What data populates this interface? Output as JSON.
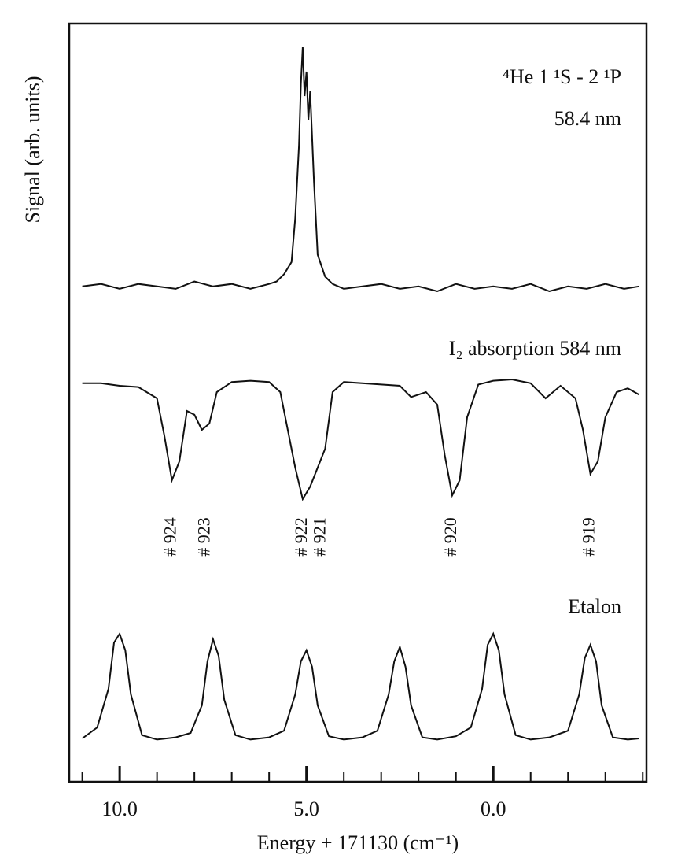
{
  "chart_data": [
    {
      "type": "line",
      "ylabel": "Signal (arb. units)",
      "annotations": [
        "⁴He 1 ¹S - 2 ¹P",
        "58.4 nm"
      ],
      "xlim": [
        11.35,
        -4.1
      ],
      "ylim": [
        0,
        1
      ],
      "x": [
        11,
        10.5,
        10,
        9.5,
        9,
        8.5,
        8,
        7.5,
        7,
        6.5,
        6,
        5.8,
        5.6,
        5.4,
        5.3,
        5.2,
        5.15,
        5.1,
        5.05,
        5.0,
        4.95,
        4.9,
        4.8,
        4.7,
        4.5,
        4.3,
        4,
        3.5,
        3,
        2.5,
        2,
        1.5,
        1,
        0.5,
        0,
        -0.5,
        -1,
        -1.5,
        -2,
        -2.5,
        -3,
        -3.5,
        -3.9
      ],
      "series": [
        {
          "color": "#111111",
          "values": [
            0.02,
            0.03,
            0.01,
            0.03,
            0.02,
            0.01,
            0.04,
            0.02,
            0.03,
            0.01,
            0.03,
            0.04,
            0.07,
            0.12,
            0.3,
            0.6,
            0.85,
            1.0,
            0.8,
            0.9,
            0.7,
            0.82,
            0.45,
            0.15,
            0.06,
            0.03,
            0.01,
            0.02,
            0.03,
            0.01,
            0.02,
            0.0,
            0.03,
            0.01,
            0.02,
            0.01,
            0.03,
            0.0,
            0.02,
            0.01,
            0.03,
            0.01,
            0.02
          ]
        }
      ]
    },
    {
      "type": "line",
      "title": "I₂ absorption 584 nm",
      "xlim": [
        11.35,
        -4.1
      ],
      "ylim": [
        0,
        1
      ],
      "x": [
        11,
        10.5,
        10,
        9.5,
        9,
        8.8,
        8.6,
        8.4,
        8.2,
        8.0,
        7.8,
        7.6,
        7.4,
        7,
        6.5,
        6,
        5.7,
        5.5,
        5.3,
        5.1,
        4.9,
        4.7,
        4.5,
        4.3,
        4,
        3,
        2.5,
        2.2,
        1.8,
        1.5,
        1.3,
        1.1,
        0.9,
        0.7,
        0.4,
        0,
        -0.5,
        -1,
        -1.4,
        -1.8,
        -2.2,
        -2.4,
        -2.6,
        -2.8,
        -3.0,
        -3.3,
        -3.6,
        -3.9
      ],
      "series": [
        {
          "color": "#111111",
          "values": [
            0.97,
            0.97,
            0.95,
            0.94,
            0.85,
            0.55,
            0.2,
            0.35,
            0.75,
            0.72,
            0.6,
            0.65,
            0.9,
            0.98,
            0.99,
            0.98,
            0.9,
            0.6,
            0.3,
            0.05,
            0.15,
            0.3,
            0.45,
            0.9,
            0.98,
            0.96,
            0.95,
            0.86,
            0.9,
            0.8,
            0.4,
            0.08,
            0.2,
            0.7,
            0.96,
            0.99,
            1.0,
            0.97,
            0.85,
            0.95,
            0.85,
            0.6,
            0.25,
            0.35,
            0.7,
            0.9,
            0.93,
            0.88
          ]
        }
      ],
      "line_labels": [
        {
          "x": 8.6,
          "label": "# 924"
        },
        {
          "x": 7.7,
          "label": "# 923"
        },
        {
          "x": 5.1,
          "label": "# 922"
        },
        {
          "x": 4.6,
          "label": "# 921"
        },
        {
          "x": 1.1,
          "label": "# 920"
        },
        {
          "x": -2.6,
          "label": "# 919"
        }
      ]
    },
    {
      "type": "line",
      "title": "Etalon",
      "xlabel": "Energy + 171130 (cm⁻¹)",
      "xlim": [
        11.35,
        -4.1
      ],
      "ylim": [
        0,
        1
      ],
      "xticks": [
        {
          "value": 10,
          "label": "10.0"
        },
        {
          "value": 5,
          "label": "5.0"
        },
        {
          "value": 0,
          "label": "0.0"
        }
      ],
      "xminorticks": [
        11,
        9,
        8,
        7,
        6,
        4,
        3,
        2,
        1,
        -1,
        -2,
        -3,
        -4
      ],
      "x": [
        11,
        10.6,
        10.3,
        10.15,
        10,
        9.85,
        9.7,
        9.4,
        9,
        8.5,
        8.1,
        7.8,
        7.65,
        7.5,
        7.35,
        7.2,
        6.9,
        6.5,
        6,
        5.6,
        5.3,
        5.15,
        5.0,
        4.85,
        4.7,
        4.4,
        4,
        3.5,
        3.1,
        2.8,
        2.65,
        2.5,
        2.35,
        2.2,
        1.9,
        1.5,
        1,
        0.6,
        0.3,
        0.15,
        0,
        -0.15,
        -0.3,
        -0.6,
        -1,
        -1.5,
        -2,
        -2.3,
        -2.45,
        -2.6,
        -2.75,
        -2.9,
        -3.2,
        -3.6,
        -3.9
      ],
      "series": [
        {
          "color": "#111111",
          "values": [
            0.05,
            0.15,
            0.5,
            0.92,
            1.0,
            0.85,
            0.45,
            0.08,
            0.04,
            0.06,
            0.1,
            0.35,
            0.75,
            0.95,
            0.8,
            0.4,
            0.08,
            0.04,
            0.06,
            0.12,
            0.45,
            0.75,
            0.85,
            0.7,
            0.35,
            0.07,
            0.04,
            0.06,
            0.12,
            0.45,
            0.75,
            0.88,
            0.7,
            0.35,
            0.06,
            0.04,
            0.07,
            0.15,
            0.5,
            0.9,
            1.0,
            0.85,
            0.45,
            0.08,
            0.04,
            0.06,
            0.12,
            0.45,
            0.78,
            0.9,
            0.75,
            0.35,
            0.06,
            0.04,
            0.05
          ]
        }
      ]
    }
  ]
}
